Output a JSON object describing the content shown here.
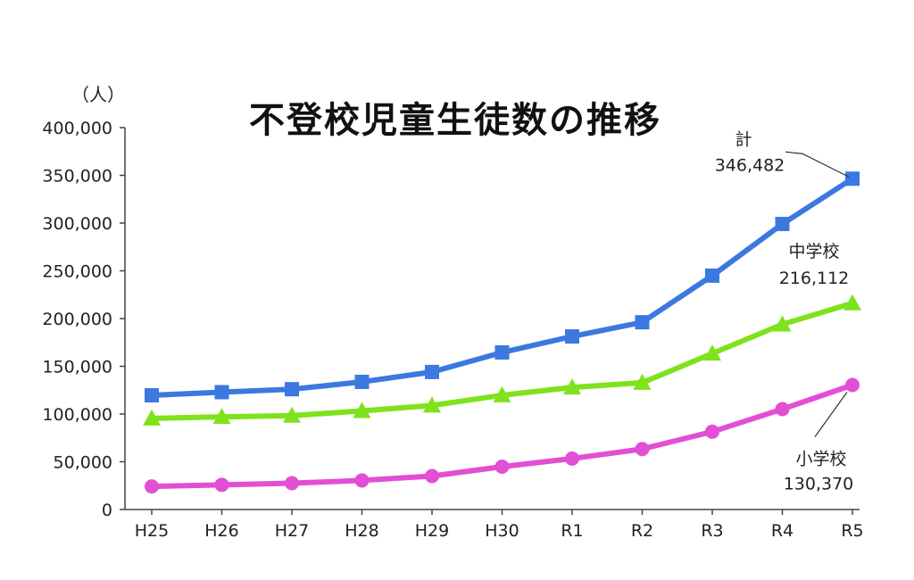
{
  "chart_data": {
    "type": "line",
    "title": "不登校児童生徒数の推移",
    "unit_label": "（人）",
    "categories": [
      "H25",
      "H26",
      "H27",
      "H28",
      "H29",
      "H30",
      "R1",
      "R2",
      "R3",
      "R4",
      "R5"
    ],
    "ylim": [
      0,
      400000
    ],
    "yticks": [
      "0",
      "50,000",
      "100,000",
      "150,000",
      "200,000",
      "250,000",
      "300,000",
      "350,000",
      "400,000"
    ],
    "grid": false,
    "series": [
      {
        "name": "計",
        "color": "#3b78e0",
        "marker": "square",
        "values": [
          119617,
          122897,
          125991,
          133683,
          144031,
          164528,
          181272,
          196127,
          244940,
          299048,
          346482
        ],
        "end_label": "346,482"
      },
      {
        "name": "中学校",
        "color": "#7ee21c",
        "marker": "triangle",
        "values": [
          95442,
          97033,
          98408,
          103235,
          108999,
          119687,
          127922,
          132777,
          163442,
          193936,
          216112
        ],
        "end_label": "216,112"
      },
      {
        "name": "小学校",
        "color": "#e24fd4",
        "marker": "circle",
        "values": [
          24175,
          25864,
          27583,
          30448,
          35032,
          44841,
          53350,
          63350,
          81498,
          105112,
          130370
        ],
        "end_label": "130,370"
      }
    ]
  }
}
